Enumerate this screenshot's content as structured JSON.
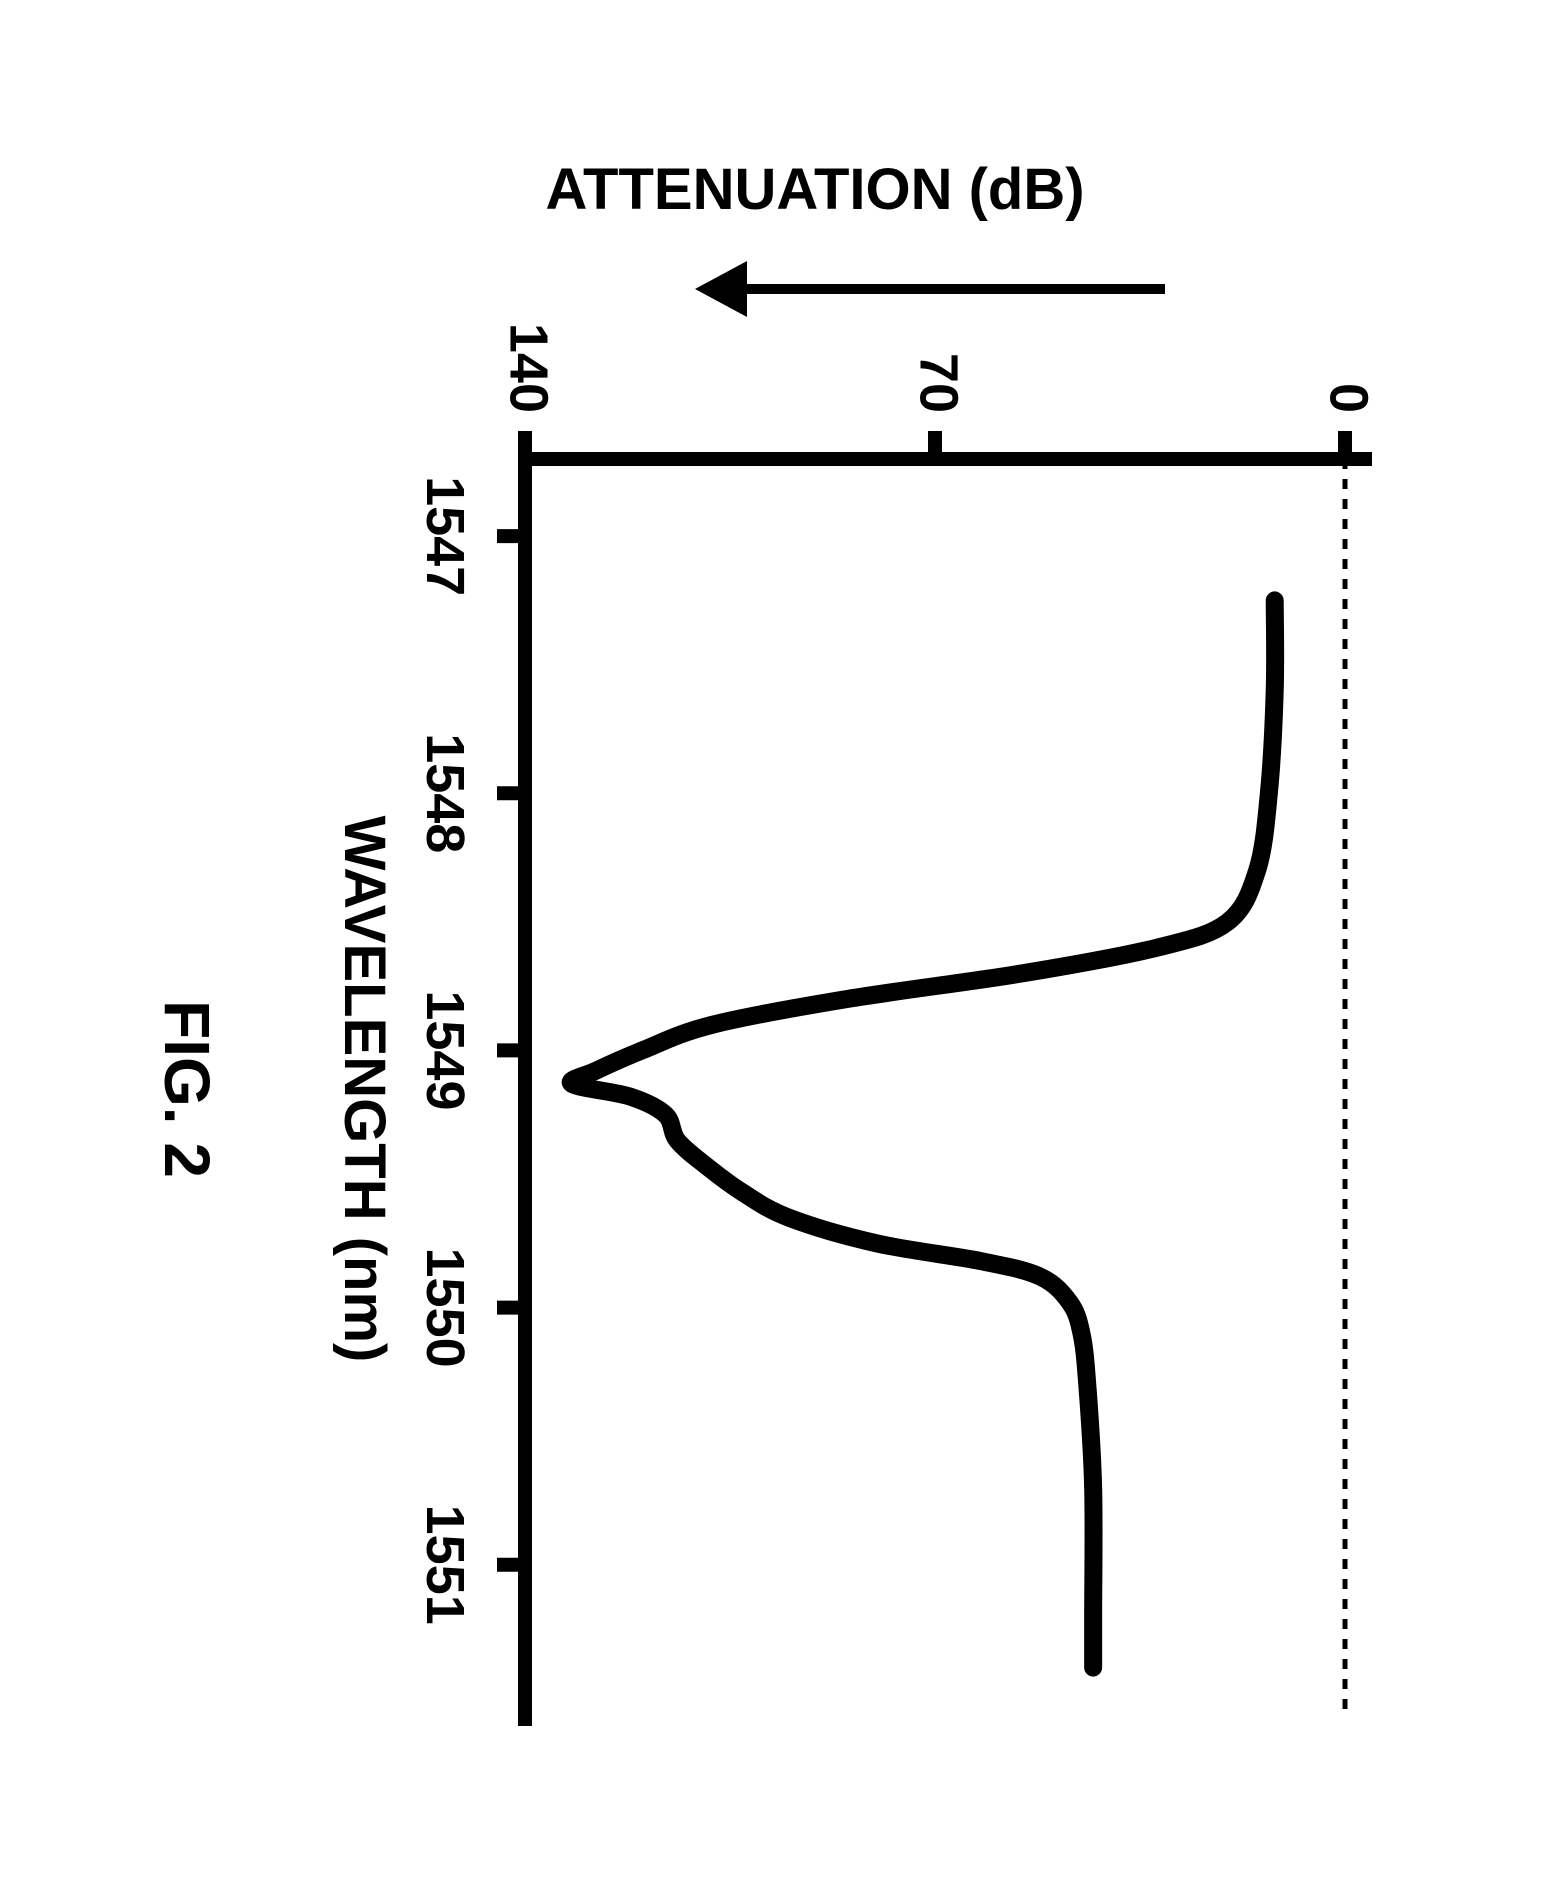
{
  "figure": {
    "caption": "FIG. 2",
    "caption_fontsize": 64,
    "caption_fontweight": "bold",
    "x_axis": {
      "label": "WAVELENGTH (nm)",
      "label_fontsize": 58,
      "label_fontweight": "bold",
      "ticks": [
        "1547",
        "1548",
        "1549",
        "1550",
        "1551"
      ],
      "tick_values": [
        1547,
        1548,
        1549,
        1550,
        1551
      ],
      "tick_fontsize": 54,
      "tick_fontweight": "bold",
      "xlim": [
        1546.7,
        1551.6
      ]
    },
    "y_axis": {
      "label": "ATTENUATION (dB)",
      "label_fontsize": 58,
      "label_fontweight": "bold",
      "ticks": [
        "0",
        "70",
        "140"
      ],
      "tick_values": [
        0,
        70,
        140
      ],
      "tick_fontsize": 54,
      "tick_fontweight": "bold",
      "ylim": [
        0,
        140
      ],
      "direction": "down"
    },
    "style": {
      "background_color": "#ffffff",
      "axis_color": "#000000",
      "axis_stroke_width": 14,
      "tick_length": 28,
      "curve_color": "#000000",
      "curve_stroke_width": 18,
      "zero_line_dash": "10 10",
      "zero_line_width": 5,
      "arrow_stroke_width": 10
    },
    "curve": {
      "points": [
        [
          1547.25,
          12
        ],
        [
          1547.6,
          12
        ],
        [
          1548.0,
          13
        ],
        [
          1548.3,
          15
        ],
        [
          1548.5,
          20
        ],
        [
          1548.6,
          32
        ],
        [
          1548.7,
          55
        ],
        [
          1548.8,
          85
        ],
        [
          1548.9,
          108
        ],
        [
          1549.0,
          120
        ],
        [
          1549.08,
          128
        ],
        [
          1549.13,
          132
        ],
        [
          1549.18,
          122
        ],
        [
          1549.25,
          116
        ],
        [
          1549.35,
          114
        ],
        [
          1549.45,
          109
        ],
        [
          1549.55,
          103
        ],
        [
          1549.65,
          95
        ],
        [
          1549.75,
          80
        ],
        [
          1549.82,
          62
        ],
        [
          1549.88,
          52
        ],
        [
          1549.98,
          47
        ],
        [
          1550.1,
          45
        ],
        [
          1550.3,
          44
        ],
        [
          1550.7,
          43
        ],
        [
          1551.2,
          43
        ],
        [
          1551.4,
          43
        ]
      ]
    }
  }
}
